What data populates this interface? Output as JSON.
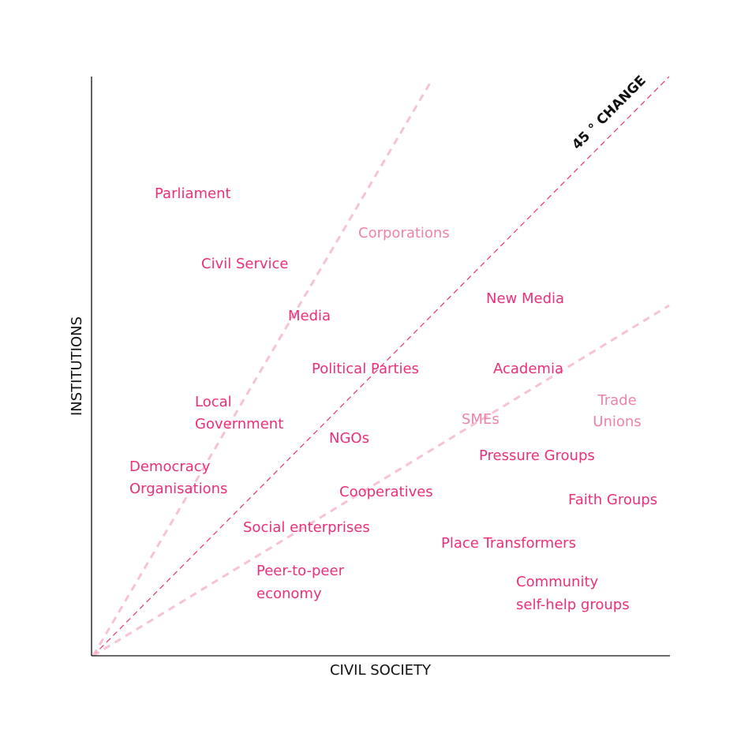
{
  "axes": {
    "x_label": "CIVIL SOCIETY",
    "y_label": "INSTITUTIONS"
  },
  "annotation": "45 ° CHANGE",
  "nodes": [
    {
      "lines": [
        "Parliament"
      ]
    },
    {
      "lines": [
        "Corporations"
      ]
    },
    {
      "lines": [
        "Civil Service"
      ]
    },
    {
      "lines": [
        "New Media"
      ]
    },
    {
      "lines": [
        "Media"
      ]
    },
    {
      "lines": [
        "Political Parties"
      ]
    },
    {
      "lines": [
        "Academia"
      ]
    },
    {
      "lines": [
        "Local",
        "Government"
      ]
    },
    {
      "lines": [
        "Trade",
        "Unions"
      ]
    },
    {
      "lines": [
        "SMEs"
      ]
    },
    {
      "lines": [
        "NGOs"
      ]
    },
    {
      "lines": [
        "Pressure Groups"
      ]
    },
    {
      "lines": [
        "Democracy",
        "Organisations"
      ]
    },
    {
      "lines": [
        "Cooperatives"
      ]
    },
    {
      "lines": [
        "Faith Groups"
      ]
    },
    {
      "lines": [
        "Social enterprises"
      ]
    },
    {
      "lines": [
        "Place Transformers"
      ]
    },
    {
      "lines": [
        "Peer-to-peer",
        "economy"
      ]
    },
    {
      "lines": [
        "Community",
        "self-help groups"
      ]
    }
  ]
}
